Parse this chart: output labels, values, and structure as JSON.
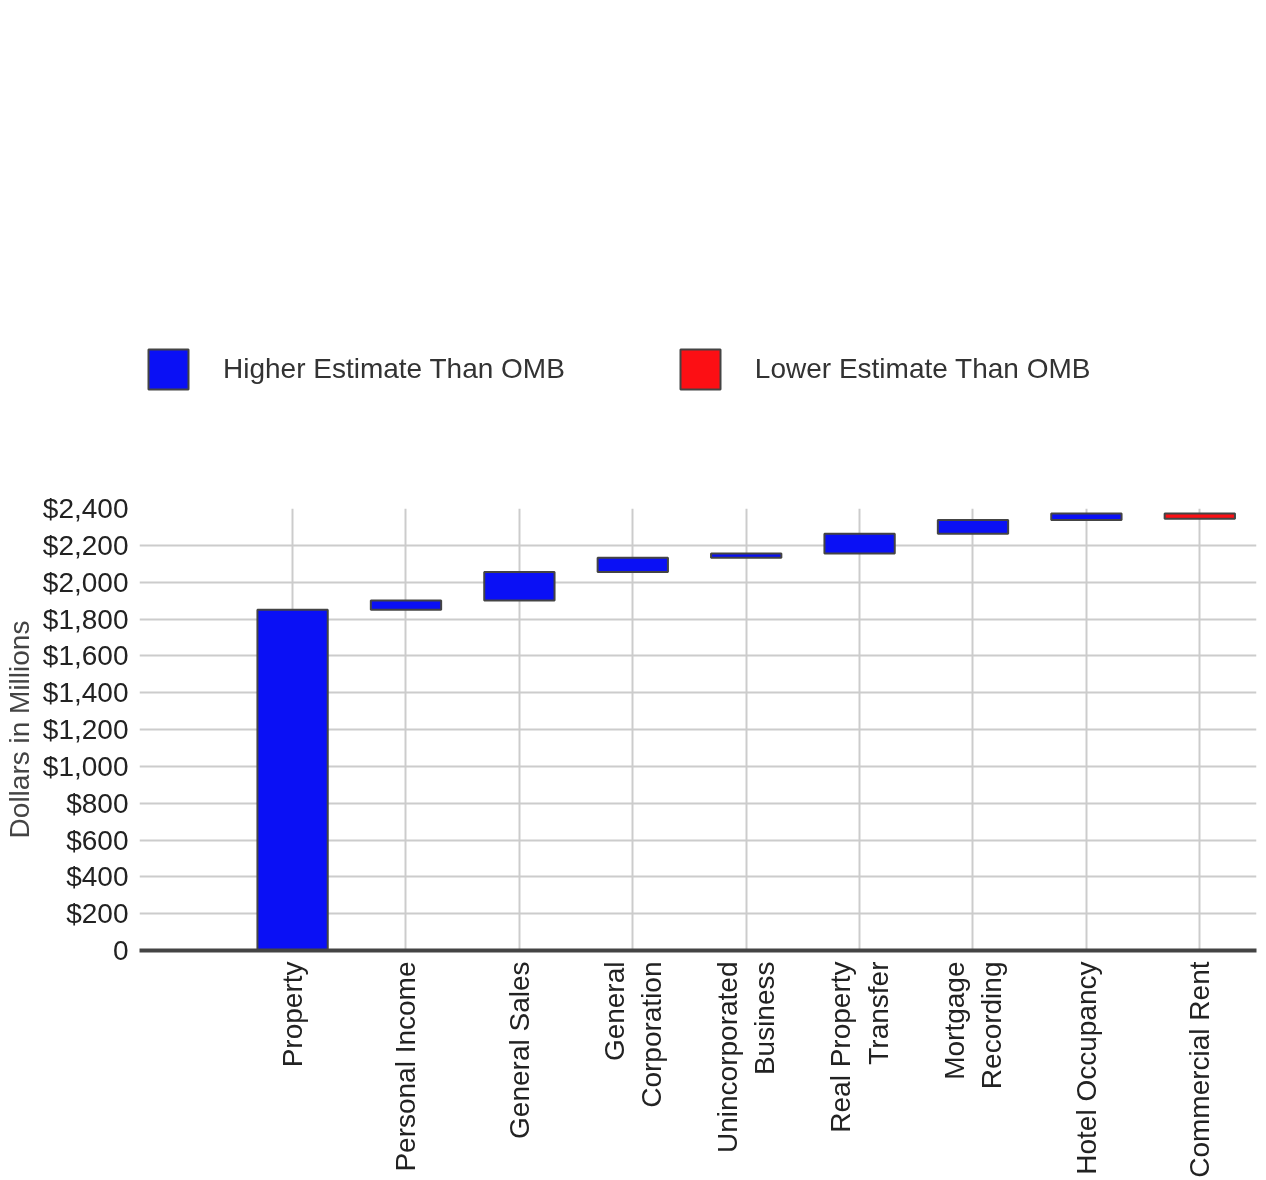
{
  "chart_data": {
    "type": "bar",
    "ylabel": "Dollars in Millions",
    "categories": [
      "Property",
      "Personal Income",
      "General Sales",
      "General Corporation",
      "Unincorporated Business",
      "Real Property Transfer",
      "Mortgage Recording",
      "Hotel Occupancy",
      "Commercial Rent"
    ],
    "series": [
      {
        "name": "Higher Estimate Than OMB",
        "color": "#0a10f5",
        "values": [
          1850,
          50,
          155,
          78,
          22,
          108,
          75,
          35,
          null
        ],
        "base": [
          0,
          1850,
          1900,
          2055,
          2133,
          2155,
          2263,
          2338,
          null
        ]
      },
      {
        "name": "Lower Estimate Than OMB",
        "color": "#fc0f14",
        "values": [
          null,
          null,
          null,
          null,
          null,
          null,
          null,
          null,
          -28
        ],
        "base": [
          null,
          null,
          null,
          null,
          null,
          null,
          null,
          null,
          2373
        ]
      }
    ],
    "ylim": [
      0,
      2400
    ],
    "yticks": [
      {
        "value": 0,
        "label": "0"
      },
      {
        "value": 200,
        "label": "$200"
      },
      {
        "value": 400,
        "label": "$400"
      },
      {
        "value": 600,
        "label": "$600"
      },
      {
        "value": 800,
        "label": "$800"
      },
      {
        "value": 1000,
        "label": "$1,000"
      },
      {
        "value": 1200,
        "label": "$1,200"
      },
      {
        "value": 1400,
        "label": "$1,400"
      },
      {
        "value": 1600,
        "label": "$1,600"
      },
      {
        "value": 1800,
        "label": "$1,800"
      },
      {
        "value": 2000,
        "label": "$2,000"
      },
      {
        "value": 2200,
        "label": "$2,200"
      },
      {
        "value": 2400,
        "label": "$2,400"
      }
    ],
    "grid": true,
    "legend": "top"
  }
}
